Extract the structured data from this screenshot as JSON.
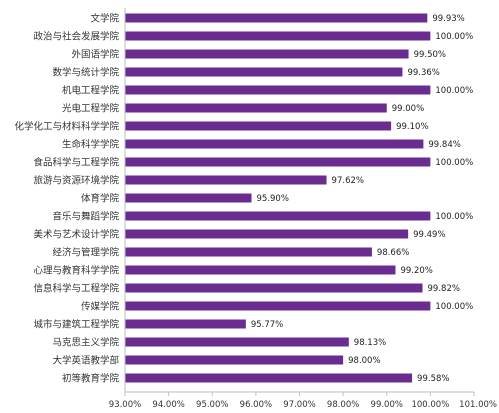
{
  "chart_data": {
    "type": "bar",
    "orientation": "horizontal",
    "categories": [
      "文学院",
      "政治与社会发展学院",
      "外国语学院",
      "数学与统计学院",
      "机电工程学院",
      "光电工程学院",
      "化学化工与材料科学学院",
      "生命科学学院",
      "食品科学与工程学院",
      "旅游与资源环境学院",
      "体育学院",
      "音乐与舞蹈学院",
      "美术与艺术设计学院",
      "经济与管理学院",
      "心理与教育科学学院",
      "信息科学与工程学院",
      "传媒学院",
      "城市与建筑工程学院",
      "马克思主义学院",
      "大学英语教学部",
      "初等教育学院"
    ],
    "values": [
      99.93,
      100.0,
      99.5,
      99.36,
      100.0,
      99.0,
      99.1,
      99.84,
      100.0,
      97.62,
      95.9,
      100.0,
      99.49,
      98.66,
      99.2,
      99.82,
      100.0,
      95.77,
      98.13,
      98.0,
      99.58
    ],
    "value_labels": [
      "99.93%",
      "100.00%",
      "99.50%",
      "99.36%",
      "100.00%",
      "99.00%",
      "99.10%",
      "99.84%",
      "100.00%",
      "97.62%",
      "95.90%",
      "100.00%",
      "99.49%",
      "98.66%",
      "99.20%",
      "99.82%",
      "100.00%",
      "95.77%",
      "98.13%",
      "98.00%",
      "99.58%"
    ],
    "xlim": [
      93,
      101
    ],
    "ticks": [
      93,
      94,
      95,
      96,
      97,
      98,
      99,
      100,
      101
    ],
    "tick_labels": [
      "93.00%",
      "94.00%",
      "95.00%",
      "96.00%",
      "97.00%",
      "98.00%",
      "99.00%",
      "100.00%",
      "101.00%"
    ],
    "bar_color": "#6a2c91",
    "grid": false,
    "title": "",
    "xlabel": "",
    "ylabel": ""
  }
}
